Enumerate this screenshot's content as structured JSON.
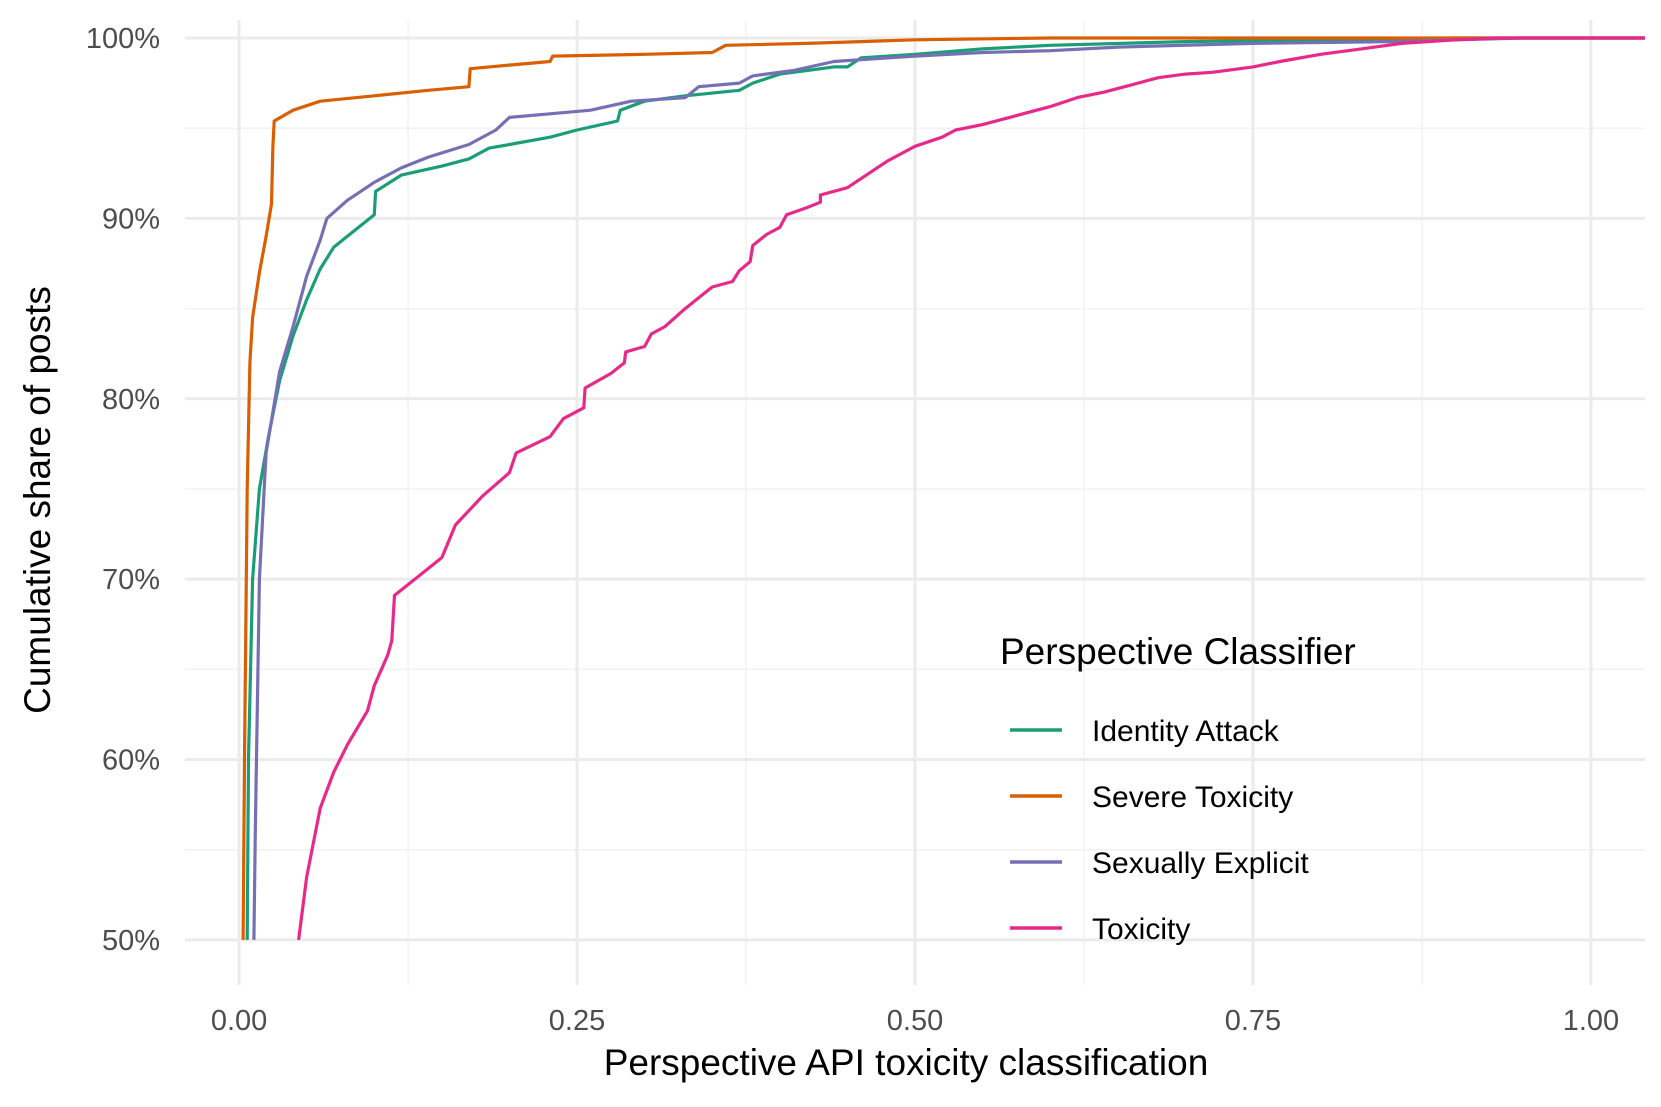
{
  "chart_data": {
    "type": "line",
    "title": "",
    "xlabel": "Perspective API toxicity classification",
    "ylabel": "Cumulative share of posts",
    "xlim": [
      -0.04,
      1.04
    ],
    "ylim": [
      0.475,
      1.01
    ],
    "x_ticks": [
      0,
      0.25,
      0.5,
      0.75,
      1
    ],
    "x_tick_labels": [
      "0.00",
      "0.25",
      "0.50",
      "0.75",
      "1.00"
    ],
    "y_ticks": [
      0.5,
      0.6,
      0.7,
      0.8,
      0.9,
      1.0
    ],
    "y_tick_labels": [
      "50%",
      "60%",
      "70%",
      "80%",
      "90%",
      "100%"
    ],
    "grid": true,
    "legend": {
      "title": "Perspective Classifier",
      "position": "bottom-right"
    },
    "series": [
      {
        "name": "Identity Attack",
        "color": "#1b9e77",
        "points": [
          [
            0.006,
            0.5
          ],
          [
            0.007,
            0.6
          ],
          [
            0.01,
            0.7
          ],
          [
            0.015,
            0.75
          ],
          [
            0.022,
            0.78
          ],
          [
            0.03,
            0.81
          ],
          [
            0.04,
            0.835
          ],
          [
            0.05,
            0.855
          ],
          [
            0.06,
            0.872
          ],
          [
            0.07,
            0.884
          ],
          [
            0.08,
            0.89
          ],
          [
            0.09,
            0.896
          ],
          [
            0.1,
            0.902
          ],
          [
            0.101,
            0.915
          ],
          [
            0.12,
            0.924
          ],
          [
            0.15,
            0.929
          ],
          [
            0.17,
            0.933
          ],
          [
            0.185,
            0.939
          ],
          [
            0.2,
            0.941
          ],
          [
            0.23,
            0.945
          ],
          [
            0.25,
            0.949
          ],
          [
            0.28,
            0.954
          ],
          [
            0.282,
            0.96
          ],
          [
            0.3,
            0.965
          ],
          [
            0.33,
            0.968
          ],
          [
            0.37,
            0.971
          ],
          [
            0.38,
            0.975
          ],
          [
            0.4,
            0.98
          ],
          [
            0.42,
            0.982
          ],
          [
            0.44,
            0.984
          ],
          [
            0.45,
            0.984
          ],
          [
            0.46,
            0.989
          ],
          [
            0.5,
            0.991
          ],
          [
            0.55,
            0.994
          ],
          [
            0.6,
            0.996
          ],
          [
            0.7,
            0.998
          ],
          [
            0.8,
            0.999
          ],
          [
            0.9,
            1.0
          ],
          [
            1.04,
            1.0
          ]
        ]
      },
      {
        "name": "Severe Toxicity",
        "color": "#d95f02",
        "points": [
          [
            0.003,
            0.5
          ],
          [
            0.004,
            0.6
          ],
          [
            0.006,
            0.75
          ],
          [
            0.008,
            0.82
          ],
          [
            0.01,
            0.845
          ],
          [
            0.015,
            0.87
          ],
          [
            0.02,
            0.89
          ],
          [
            0.024,
            0.908
          ],
          [
            0.025,
            0.94
          ],
          [
            0.026,
            0.954
          ],
          [
            0.04,
            0.96
          ],
          [
            0.06,
            0.965
          ],
          [
            0.1,
            0.968
          ],
          [
            0.14,
            0.971
          ],
          [
            0.17,
            0.973
          ],
          [
            0.171,
            0.983
          ],
          [
            0.2,
            0.985
          ],
          [
            0.23,
            0.987
          ],
          [
            0.232,
            0.99
          ],
          [
            0.3,
            0.991
          ],
          [
            0.35,
            0.992
          ],
          [
            0.36,
            0.996
          ],
          [
            0.42,
            0.997
          ],
          [
            0.46,
            0.998
          ],
          [
            0.5,
            0.999
          ],
          [
            0.6,
            1.0
          ],
          [
            1.04,
            1.0
          ]
        ]
      },
      {
        "name": "Sexually Explicit",
        "color": "#7570b3",
        "points": [
          [
            0.011,
            0.5
          ],
          [
            0.012,
            0.56
          ],
          [
            0.015,
            0.7
          ],
          [
            0.02,
            0.77
          ],
          [
            0.03,
            0.815
          ],
          [
            0.04,
            0.84
          ],
          [
            0.05,
            0.868
          ],
          [
            0.06,
            0.888
          ],
          [
            0.065,
            0.9
          ],
          [
            0.08,
            0.91
          ],
          [
            0.1,
            0.92
          ],
          [
            0.12,
            0.928
          ],
          [
            0.14,
            0.934
          ],
          [
            0.17,
            0.941
          ],
          [
            0.19,
            0.949
          ],
          [
            0.2,
            0.956
          ],
          [
            0.23,
            0.958
          ],
          [
            0.26,
            0.96
          ],
          [
            0.29,
            0.965
          ],
          [
            0.33,
            0.967
          ],
          [
            0.34,
            0.973
          ],
          [
            0.37,
            0.975
          ],
          [
            0.38,
            0.979
          ],
          [
            0.41,
            0.982
          ],
          [
            0.44,
            0.987
          ],
          [
            0.46,
            0.988
          ],
          [
            0.5,
            0.99
          ],
          [
            0.55,
            0.992
          ],
          [
            0.6,
            0.993
          ],
          [
            0.65,
            0.995
          ],
          [
            0.75,
            0.997
          ],
          [
            0.85,
            0.998
          ],
          [
            0.95,
            1.0
          ],
          [
            1.04,
            1.0
          ]
        ]
      },
      {
        "name": "Toxicity",
        "color": "#e7298a",
        "points": [
          [
            0.044,
            0.5
          ],
          [
            0.05,
            0.535
          ],
          [
            0.06,
            0.573
          ],
          [
            0.07,
            0.593
          ],
          [
            0.08,
            0.608
          ],
          [
            0.095,
            0.627
          ],
          [
            0.1,
            0.641
          ],
          [
            0.11,
            0.658
          ],
          [
            0.113,
            0.666
          ],
          [
            0.115,
            0.691
          ],
          [
            0.13,
            0.7
          ],
          [
            0.15,
            0.712
          ],
          [
            0.16,
            0.73
          ],
          [
            0.18,
            0.746
          ],
          [
            0.2,
            0.759
          ],
          [
            0.205,
            0.77
          ],
          [
            0.23,
            0.779
          ],
          [
            0.24,
            0.789
          ],
          [
            0.255,
            0.795
          ],
          [
            0.256,
            0.806
          ],
          [
            0.275,
            0.814
          ],
          [
            0.285,
            0.82
          ],
          [
            0.286,
            0.826
          ],
          [
            0.3,
            0.829
          ],
          [
            0.305,
            0.836
          ],
          [
            0.315,
            0.84
          ],
          [
            0.33,
            0.85
          ],
          [
            0.34,
            0.856
          ],
          [
            0.35,
            0.862
          ],
          [
            0.365,
            0.865
          ],
          [
            0.37,
            0.871
          ],
          [
            0.378,
            0.876
          ],
          [
            0.38,
            0.885
          ],
          [
            0.39,
            0.891
          ],
          [
            0.4,
            0.895
          ],
          [
            0.405,
            0.902
          ],
          [
            0.42,
            0.906
          ],
          [
            0.43,
            0.909
          ],
          [
            0.43,
            0.913
          ],
          [
            0.45,
            0.917
          ],
          [
            0.46,
            0.922
          ],
          [
            0.47,
            0.927
          ],
          [
            0.48,
            0.932
          ],
          [
            0.49,
            0.936
          ],
          [
            0.5,
            0.94
          ],
          [
            0.52,
            0.945
          ],
          [
            0.53,
            0.949
          ],
          [
            0.55,
            0.952
          ],
          [
            0.57,
            0.956
          ],
          [
            0.6,
            0.962
          ],
          [
            0.62,
            0.967
          ],
          [
            0.64,
            0.97
          ],
          [
            0.66,
            0.974
          ],
          [
            0.68,
            0.978
          ],
          [
            0.7,
            0.98
          ],
          [
            0.72,
            0.981
          ],
          [
            0.75,
            0.984
          ],
          [
            0.77,
            0.987
          ],
          [
            0.8,
            0.991
          ],
          [
            0.83,
            0.994
          ],
          [
            0.86,
            0.997
          ],
          [
            0.9,
            0.999
          ],
          [
            0.93,
            1.0
          ],
          [
            1.04,
            1.0
          ]
        ]
      }
    ]
  }
}
